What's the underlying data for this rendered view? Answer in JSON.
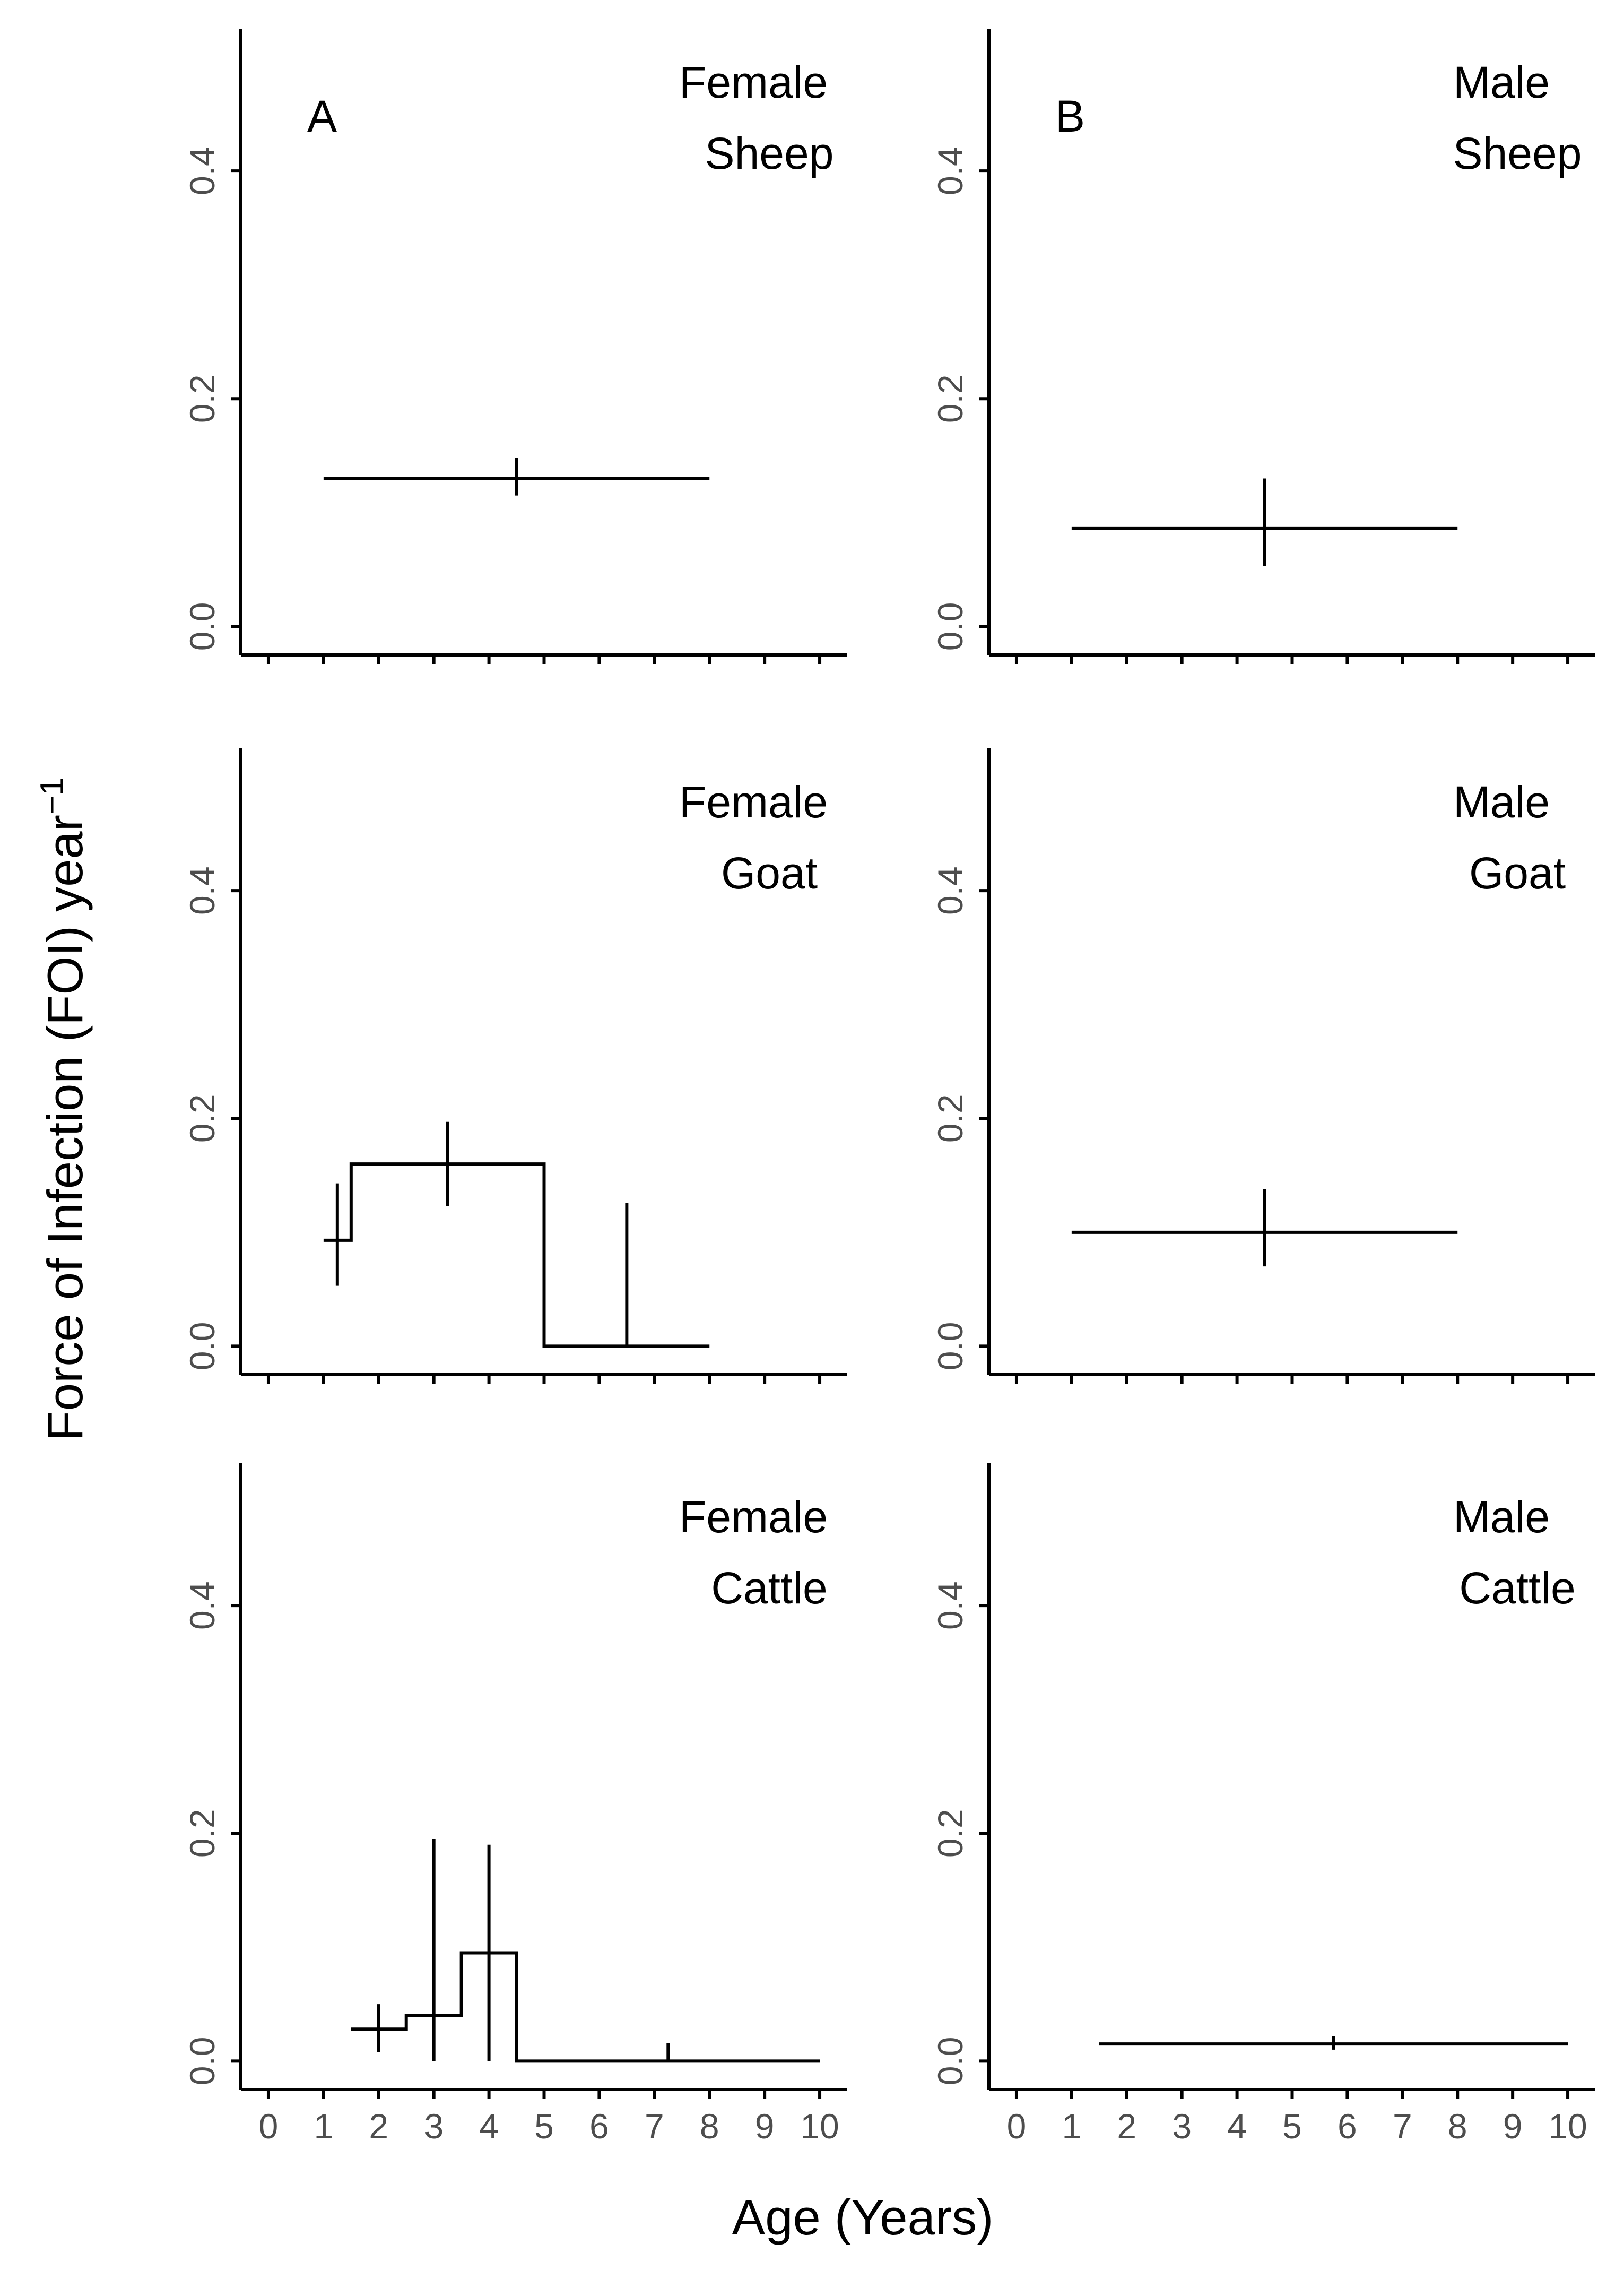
{
  "chart_data": {
    "type": "line",
    "y_axis_title": "Force of Infection (FOI) year",
    "y_axis_title_superscript": "−1",
    "x_axis_title": "Age (Years)",
    "xlim": [
      -0.5,
      10.5
    ],
    "ylim": [
      -0.025,
      0.525
    ],
    "x_ticks": [
      0,
      1,
      2,
      3,
      4,
      5,
      6,
      7,
      8,
      9,
      10
    ],
    "x_tick_labels": [
      "0",
      "1",
      "2",
      "3",
      "4",
      "5",
      "6",
      "7",
      "8",
      "9",
      "10"
    ],
    "y_ticks": [
      0.0,
      0.2,
      0.4
    ],
    "y_tick_labels": [
      "0.0",
      "0.2",
      "0.4"
    ],
    "panels": [
      {
        "id": "female-sheep",
        "row": 0,
        "col": 0,
        "letter": "A",
        "label_line1": "Female",
        "label_line2": "Sheep",
        "segments": [
          {
            "x_start": 1,
            "x_end": 8,
            "foi": 0.13
          }
        ],
        "intervals": [
          {
            "x": 4.5,
            "lower": 0.115,
            "upper": 0.148
          }
        ]
      },
      {
        "id": "male-sheep",
        "row": 0,
        "col": 1,
        "letter": "B",
        "label_line1": "Male",
        "label_line2": "Sheep",
        "segments": [
          {
            "x_start": 1,
            "x_end": 8,
            "foi": 0.086
          }
        ],
        "intervals": [
          {
            "x": 4.5,
            "lower": 0.053,
            "upper": 0.13
          }
        ]
      },
      {
        "id": "female-goat",
        "row": 1,
        "col": 0,
        "letter": "",
        "label_line1": "Female",
        "label_line2": "Goat",
        "segments": [
          {
            "x_start": 1,
            "x_end": 1.5,
            "foi": 0.093
          },
          {
            "x_start": 1.5,
            "x_end": 5,
            "foi": 0.16
          },
          {
            "x_start": 5,
            "x_end": 8,
            "foi": 0.0
          }
        ],
        "intervals": [
          {
            "x": 1.25,
            "lower": 0.053,
            "upper": 0.143
          },
          {
            "x": 3.25,
            "lower": 0.123,
            "upper": 0.197
          },
          {
            "x": 6.5,
            "lower": 0.0,
            "upper": 0.126
          }
        ]
      },
      {
        "id": "male-goat",
        "row": 1,
        "col": 1,
        "letter": "",
        "label_line1": "Male",
        "label_line2": "Goat",
        "segments": [
          {
            "x_start": 1,
            "x_end": 8,
            "foi": 0.1
          }
        ],
        "intervals": [
          {
            "x": 4.5,
            "lower": 0.07,
            "upper": 0.138
          }
        ]
      },
      {
        "id": "female-cattle",
        "row": 2,
        "col": 0,
        "letter": "",
        "label_line1": "Female",
        "label_line2": "Cattle",
        "segments": [
          {
            "x_start": 1.5,
            "x_end": 2.5,
            "foi": 0.028
          },
          {
            "x_start": 2.5,
            "x_end": 3.5,
            "foi": 0.04
          },
          {
            "x_start": 3.5,
            "x_end": 4.5,
            "foi": 0.095
          },
          {
            "x_start": 4.5,
            "x_end": 10,
            "foi": 0.0
          }
        ],
        "intervals": [
          {
            "x": 2,
            "lower": 0.008,
            "upper": 0.05
          },
          {
            "x": 3,
            "lower": 0.0,
            "upper": 0.195
          },
          {
            "x": 4,
            "lower": 0.0,
            "upper": 0.19
          },
          {
            "x": 7.25,
            "lower": 0.0,
            "upper": 0.016
          }
        ]
      },
      {
        "id": "male-cattle",
        "row": 2,
        "col": 1,
        "letter": "",
        "label_line1": "Male",
        "label_line2": "Cattle",
        "segments": [
          {
            "x_start": 1.5,
            "x_end": 10,
            "foi": 0.015
          }
        ],
        "intervals": [
          {
            "x": 5.75,
            "lower": 0.01,
            "upper": 0.022
          }
        ]
      }
    ]
  }
}
